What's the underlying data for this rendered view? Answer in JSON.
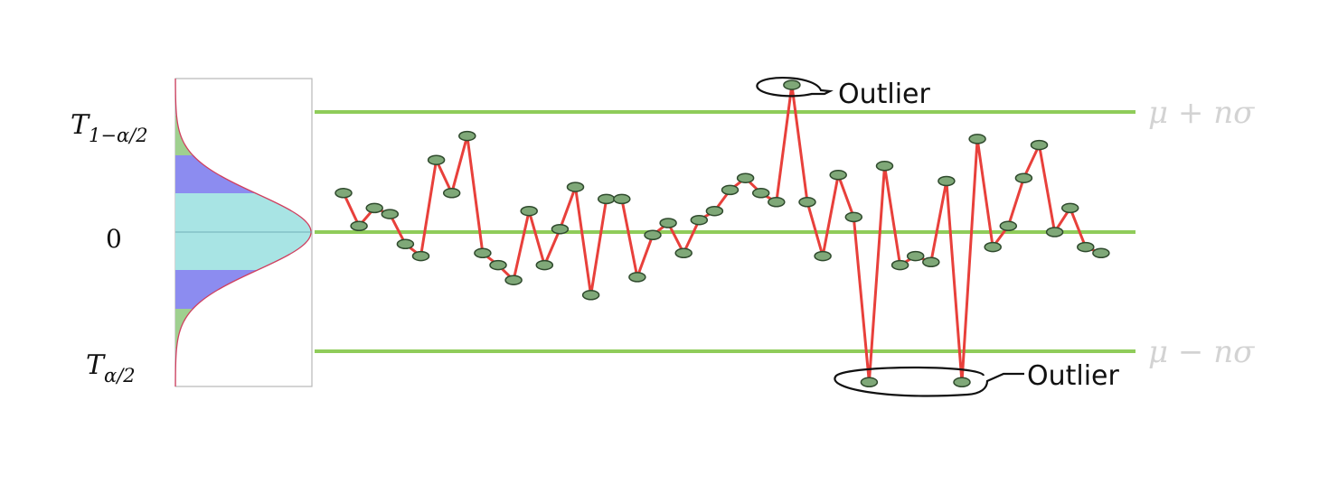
{
  "left_axis": {
    "upper_label_main": "T",
    "upper_label_sub": "1−α/2",
    "zero_label": "0",
    "lower_label_main": "T",
    "lower_label_sub": "α/2"
  },
  "bounds": {
    "upper_label": "μ + nσ",
    "lower_label": "μ − nσ"
  },
  "callouts": {
    "top_label": "Outlier",
    "bottom_label": "Outlier"
  },
  "chart_data": {
    "type": "line",
    "x": [
      1,
      2,
      3,
      4,
      5,
      6,
      7,
      8,
      9,
      10,
      11,
      12,
      13,
      14,
      15,
      16,
      17,
      18,
      19,
      20,
      21,
      22,
      23,
      24,
      25,
      26,
      27,
      28,
      29,
      30,
      31,
      32,
      33,
      34,
      35,
      36,
      37,
      38,
      39,
      40,
      41,
      42,
      43,
      44,
      45,
      46,
      47,
      48,
      49,
      50
    ],
    "y": [
      1.3,
      0.2,
      0.8,
      0.6,
      -0.4,
      -0.8,
      2.4,
      1.3,
      3.2,
      -0.7,
      -1.1,
      -1.6,
      0.7,
      -1.1,
      0.1,
      1.5,
      -2.1,
      1.1,
      1.1,
      -1.5,
      -0.1,
      0.3,
      -0.7,
      0.4,
      0.7,
      1.4,
      1.8,
      1.3,
      1.0,
      4.9,
      1.0,
      -0.8,
      1.9,
      0.5,
      -5.0,
      2.2,
      -1.1,
      -0.8,
      -1.0,
      1.7,
      -5.0,
      3.1,
      -0.5,
      0.2,
      1.8,
      2.9,
      0.0,
      0.8,
      -0.5,
      -0.7
    ],
    "upper_bound": 4,
    "lower_bound": -4,
    "mean": 0,
    "outlier_indices": [
      30,
      35,
      41
    ],
    "colors": {
      "line": "#e8403b",
      "marker_fill": "#7fa878",
      "marker_stroke": "#2f4a2d",
      "bound_line": "#8fcc5a",
      "distribution_center": "#a8e4e4",
      "distribution_mid": "#8c8cf0",
      "distribution_tail": "#9fd08f"
    }
  }
}
